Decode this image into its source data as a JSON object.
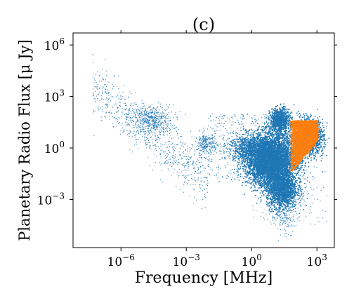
{
  "chart_data": {
    "type": "scatter",
    "title": "(c)",
    "xlabel": "Frequency [MHz]",
    "ylabel": "Planetary Radio Flux [$\\mu$ Jy]",
    "xscale": "log",
    "yscale": "log",
    "xlim_log10": [
      -8.2,
      3.8
    ],
    "ylim_log10": [
      -5.8,
      6.7
    ],
    "xticks": [
      {
        "value": 1e-06,
        "base": "10",
        "exp": "−6"
      },
      {
        "value": 0.001,
        "base": "10",
        "exp": "−3"
      },
      {
        "value": 1,
        "base": "10",
        "exp": "0"
      },
      {
        "value": 1000,
        "base": "10",
        "exp": "3"
      }
    ],
    "yticks": [
      {
        "value": 0.001,
        "base": "10",
        "exp": "−3"
      },
      {
        "value": 1,
        "base": "10",
        "exp": "0"
      },
      {
        "value": 1000,
        "base": "10",
        "exp": "3"
      },
      {
        "value": 1000000.0,
        "base": "10",
        "exp": "6"
      }
    ],
    "grid": false,
    "legend": "none",
    "series": [
      {
        "color": "#1f77b4",
        "clusters": [
          {
            "log10_x": [
              -6.5,
              -5.5,
              -4.5,
              -3.5,
              -2.5
            ],
            "log10_y": [
              2.0,
              2.6,
              1.6,
              0.8,
              -0.3
            ]
          },
          {
            "log10_x": [
              0,
              0.5,
              1.0,
              1.5
            ],
            "log10_y": [
              0.5,
              -1.2,
              -2.4,
              1.5
            ]
          },
          {
            "log10_x": [
              2.0,
              2.5,
              3.0
            ],
            "log10_y": [
              -0.5,
              1.2,
              0.6
            ]
          }
        ]
      },
      {
        "color": "#ff7f0e",
        "clusters": [
          {
            "log10_x": [
              1.9,
              2.2,
              2.5
            ],
            "log10_y": [
              0.3,
              0.7,
              0.9
            ]
          }
        ]
      }
    ]
  }
}
